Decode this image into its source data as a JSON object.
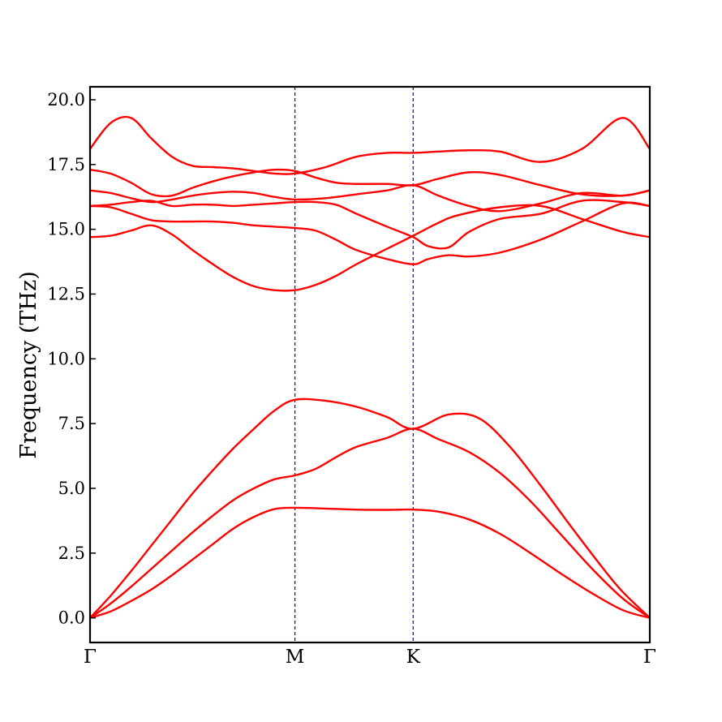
{
  "chart_data": {
    "type": "line",
    "title": "",
    "xlabel": "",
    "ylabel": "Frequency (THz)",
    "ylim": [
      -0.95,
      20.5
    ],
    "yticks": [
      "0.0",
      "2.5",
      "5.0",
      "7.5",
      "10.0",
      "12.5",
      "15.0",
      "17.5",
      "20.0"
    ],
    "ytick_values": [
      0,
      2.5,
      5,
      7.5,
      10,
      12.5,
      15,
      17.5,
      20
    ],
    "high_symmetry_points": [
      {
        "label": "Γ",
        "x": 0
      },
      {
        "label": "M",
        "x": 1
      },
      {
        "label": "K",
        "x": 1.577
      },
      {
        "label": "Γ",
        "x": 2.732
      }
    ],
    "xlim": [
      0,
      2.732
    ],
    "grid": false,
    "colors": {
      "band": "#ff0000",
      "divider": "#0000cc",
      "axes": "#000000"
    },
    "series": [
      {
        "x": [
          0,
          0.1,
          0.2,
          0.3,
          0.4,
          0.5,
          0.6,
          0.7,
          0.8,
          0.9,
          1.0,
          1.15,
          1.3,
          1.45,
          1.577,
          1.7,
          1.85,
          2.0,
          2.15,
          2.3,
          2.45,
          2.6,
          2.732
        ],
        "y": [
          0.0,
          0.25,
          0.65,
          1.1,
          1.65,
          2.25,
          2.85,
          3.45,
          3.9,
          4.2,
          4.25,
          4.22,
          4.18,
          4.17,
          4.18,
          4.1,
          3.8,
          3.25,
          2.5,
          1.7,
          0.95,
          0.3,
          0.0
        ]
      },
      {
        "x": [
          0,
          0.1,
          0.2,
          0.3,
          0.4,
          0.5,
          0.6,
          0.7,
          0.8,
          0.9,
          1.0,
          1.1,
          1.2,
          1.3,
          1.45,
          1.577,
          1.7,
          1.85,
          2.0,
          2.15,
          2.3,
          2.45,
          2.6,
          2.732
        ],
        "y": [
          0.0,
          0.55,
          1.2,
          1.9,
          2.6,
          3.3,
          3.95,
          4.55,
          5.0,
          5.35,
          5.5,
          5.75,
          6.2,
          6.6,
          6.95,
          7.3,
          6.9,
          6.4,
          5.6,
          4.5,
          3.2,
          1.9,
          0.75,
          0.0
        ]
      },
      {
        "x": [
          0,
          0.1,
          0.2,
          0.3,
          0.4,
          0.5,
          0.6,
          0.7,
          0.8,
          0.9,
          1.0,
          1.15,
          1.3,
          1.45,
          1.577,
          1.75,
          1.9,
          2.05,
          2.2,
          2.35,
          2.5,
          2.6,
          2.732
        ],
        "y": [
          0.0,
          0.85,
          1.8,
          2.8,
          3.8,
          4.8,
          5.7,
          6.55,
          7.3,
          8.0,
          8.42,
          8.38,
          8.15,
          7.75,
          7.3,
          7.85,
          7.7,
          6.6,
          5.1,
          3.5,
          1.95,
          1.0,
          0.0
        ]
      },
      {
        "x": [
          0,
          0.1,
          0.2,
          0.3,
          0.4,
          0.5,
          0.6,
          0.7,
          0.8,
          0.9,
          1.0,
          1.1,
          1.2,
          1.3,
          1.45,
          1.577,
          1.7,
          1.8,
          2.0,
          2.2,
          2.4,
          2.6,
          2.732
        ],
        "y": [
          14.7,
          14.75,
          14.95,
          15.15,
          14.8,
          14.2,
          13.65,
          13.15,
          12.8,
          12.65,
          12.65,
          12.85,
          13.2,
          13.65,
          14.25,
          14.75,
          15.25,
          15.55,
          15.85,
          15.9,
          15.4,
          14.9,
          14.7
        ]
      },
      {
        "x": [
          0,
          0.1,
          0.2,
          0.3,
          0.4,
          0.5,
          0.6,
          0.7,
          0.8,
          0.9,
          1.0,
          1.1,
          1.2,
          1.3,
          1.45,
          1.577,
          1.65,
          1.75,
          1.85,
          2.0,
          2.2,
          2.4,
          2.6,
          2.732
        ],
        "y": [
          15.9,
          15.85,
          15.6,
          15.35,
          15.3,
          15.3,
          15.3,
          15.25,
          15.15,
          15.1,
          15.05,
          14.95,
          14.6,
          14.2,
          13.85,
          13.65,
          13.85,
          14.0,
          13.95,
          14.1,
          14.6,
          15.3,
          16.0,
          15.9
        ]
      },
      {
        "x": [
          0,
          0.1,
          0.2,
          0.3,
          0.4,
          0.5,
          0.6,
          0.7,
          0.8,
          0.9,
          1.0,
          1.1,
          1.2,
          1.3,
          1.45,
          1.577,
          1.65,
          1.75,
          1.85,
          2.0,
          2.2,
          2.4,
          2.6,
          2.732
        ],
        "y": [
          15.9,
          15.95,
          16.05,
          16.1,
          15.9,
          15.95,
          15.95,
          15.9,
          15.95,
          16.0,
          16.05,
          16.05,
          15.95,
          15.6,
          15.1,
          14.7,
          14.35,
          14.3,
          14.9,
          15.4,
          15.6,
          16.1,
          16.05,
          15.9
        ]
      },
      {
        "x": [
          0,
          0.1,
          0.2,
          0.3,
          0.4,
          0.5,
          0.6,
          0.7,
          0.8,
          0.9,
          1.0,
          1.15,
          1.3,
          1.45,
          1.577,
          1.7,
          1.85,
          2.0,
          2.2,
          2.4,
          2.6,
          2.732
        ],
        "y": [
          16.5,
          16.4,
          16.2,
          16.05,
          16.15,
          16.3,
          16.4,
          16.45,
          16.4,
          16.25,
          16.15,
          16.2,
          16.35,
          16.5,
          16.7,
          16.3,
          15.9,
          15.7,
          16.0,
          16.4,
          16.3,
          16.5
        ]
      },
      {
        "x": [
          0,
          0.1,
          0.2,
          0.3,
          0.4,
          0.5,
          0.6,
          0.7,
          0.8,
          0.9,
          1.0,
          1.1,
          1.2,
          1.3,
          1.45,
          1.577,
          1.7,
          1.85,
          2.0,
          2.2,
          2.4,
          2.6,
          2.732
        ],
        "y": [
          17.3,
          17.15,
          16.8,
          16.35,
          16.3,
          16.6,
          16.85,
          17.05,
          17.2,
          17.3,
          17.25,
          17.0,
          16.8,
          16.75,
          16.75,
          16.7,
          16.95,
          17.2,
          17.1,
          16.7,
          16.35,
          16.3,
          16.5
        ]
      },
      {
        "x": [
          0,
          0.1,
          0.2,
          0.3,
          0.4,
          0.5,
          0.6,
          0.7,
          0.8,
          0.9,
          1.0,
          1.15,
          1.3,
          1.45,
          1.577,
          1.7,
          1.85,
          2.0,
          2.2,
          2.4,
          2.6,
          2.732
        ],
        "y": [
          18.1,
          19.1,
          19.3,
          18.5,
          17.8,
          17.45,
          17.4,
          17.35,
          17.25,
          17.15,
          17.15,
          17.4,
          17.8,
          17.95,
          17.95,
          18.0,
          18.05,
          18.0,
          17.6,
          18.1,
          19.3,
          18.1
        ]
      }
    ]
  }
}
